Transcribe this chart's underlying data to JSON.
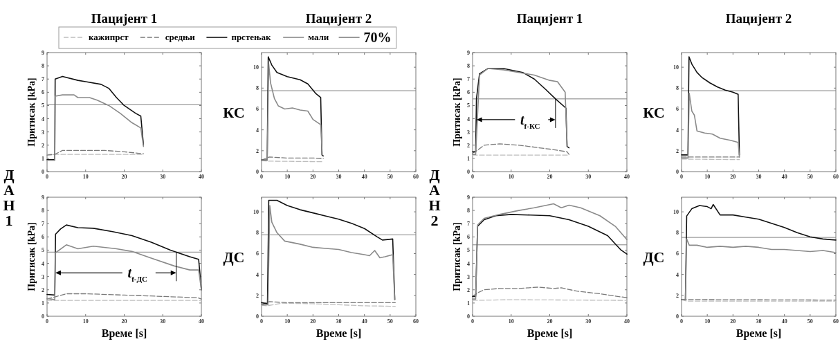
{
  "chart_data": [
    {
      "type": "line",
      "title": "Пацијент 1",
      "ylabel": "Притисак [kPa]",
      "xlim": [
        0,
        40
      ],
      "xticks": [
        0,
        10,
        20,
        30,
        40
      ],
      "ylim": [
        0,
        9
      ],
      "yticks": [
        0,
        1,
        2,
        3,
        4,
        5,
        6,
        7,
        8,
        9
      ],
      "legend": "top",
      "annotations": [
        "70%"
      ],
      "ref_lines": [
        {
          "axis": "y",
          "value": 5.05,
          "color": "#808080"
        }
      ],
      "series": [
        {
          "name": "кажипрст",
          "color": "#bdbdbd",
          "line_style": "dashed",
          "x": [
            0,
            2,
            10,
            20,
            25
          ],
          "values": [
            1.3,
            1.3,
            1.3,
            1.3,
            1.3
          ]
        },
        {
          "name": "средњи",
          "color": "#7a7a7a",
          "line_style": "dashed",
          "x": [
            0,
            2,
            4,
            15,
            20,
            25
          ],
          "values": [
            1.25,
            1.3,
            1.6,
            1.6,
            1.5,
            1.35
          ]
        },
        {
          "name": "прстењак",
          "color": "#111111",
          "line_style": "solid",
          "x": [
            0,
            2,
            2.1,
            4,
            8,
            10,
            14,
            16,
            18,
            20,
            23,
            24.3,
            25
          ],
          "values": [
            0.9,
            0.9,
            7,
            7.2,
            6.9,
            6.8,
            6.6,
            6.3,
            5.6,
            5,
            4.4,
            4.2,
            2
          ]
        },
        {
          "name": "мали",
          "color": "#8a8a8a",
          "line_style": "solid",
          "x": [
            0,
            2,
            2.1,
            4,
            7,
            8,
            11,
            13,
            16,
            19,
            22,
            24.3,
            25
          ],
          "values": [
            0.85,
            0.85,
            5.7,
            5.8,
            5.8,
            5.6,
            5.6,
            5.4,
            5,
            4.4,
            3.7,
            3.3,
            1.9
          ]
        }
      ]
    },
    {
      "type": "line",
      "title": "Пацијент 2",
      "xlim": [
        0,
        60
      ],
      "xticks": [
        0,
        10,
        20,
        30,
        40,
        50,
        60
      ],
      "ylim": [
        0,
        11.4
      ],
      "yticks": [
        0,
        2,
        4,
        6,
        8,
        10
      ],
      "annotations": [
        "КС"
      ],
      "ref_lines": [
        {
          "axis": "y",
          "value": 7.75,
          "color": "#808080"
        }
      ],
      "series": [
        {
          "color": "#bdbdbd",
          "line_style": "dashed",
          "x": [
            0,
            3,
            24
          ],
          "values": [
            1.05,
            1,
            0.95
          ]
        },
        {
          "color": "#7a7a7a",
          "line_style": "dashed",
          "x": [
            0,
            3,
            10,
            20,
            24
          ],
          "values": [
            1.1,
            1.4,
            1.3,
            1.3,
            1.25
          ]
        },
        {
          "color": "#111111",
          "line_style": "solid",
          "x": [
            0,
            2.2,
            2.6,
            4,
            6,
            10,
            15,
            18,
            21,
            23,
            23.5,
            24
          ],
          "values": [
            1.1,
            1.1,
            11,
            10.2,
            9.5,
            9.1,
            8.8,
            8.4,
            7.5,
            7.1,
            1.6,
            1.5
          ]
        },
        {
          "color": "#8a8a8a",
          "line_style": "solid",
          "x": [
            0,
            2.2,
            2.8,
            3.5,
            5,
            6.5,
            9,
            12,
            15,
            18,
            20,
            23,
            23.6
          ],
          "values": [
            1.1,
            1.1,
            10.3,
            8.5,
            7,
            6.3,
            6,
            6.1,
            5.9,
            5.8,
            5,
            4.5,
            1.6
          ]
        }
      ]
    },
    {
      "type": "line",
      "title": "Пацијент 1",
      "ylabel": "Притисак [kPa]",
      "xlim": [
        0,
        40
      ],
      "xticks": [
        0,
        10,
        20,
        30,
        40
      ],
      "ylim": [
        0,
        9
      ],
      "yticks": [
        0,
        1,
        2,
        3,
        4,
        5,
        6,
        7,
        8,
        9
      ],
      "annotations": [
        {
          "text": "t$_{f-КС}$",
          "x": 21.5,
          "y": 5.5
        }
      ],
      "ref_lines": [
        {
          "axis": "y",
          "value": 5.5,
          "color": "#808080"
        }
      ],
      "series": [
        {
          "color": "#bdbdbd",
          "line_style": "dashed",
          "x": [
            0,
            25
          ],
          "values": [
            1.25,
            1.25
          ]
        },
        {
          "color": "#7a7a7a",
          "line_style": "dashed",
          "x": [
            0,
            1.2,
            3,
            7,
            12,
            20,
            24.5,
            25
          ],
          "values": [
            1.4,
            1.6,
            2,
            2.1,
            2,
            1.7,
            1.5,
            1.3
          ]
        },
        {
          "color": "#111111",
          "line_style": "solid",
          "x": [
            0,
            0.8,
            1,
            1.8,
            4,
            8,
            13,
            16,
            19,
            21.5,
            24.2,
            24.5,
            25
          ],
          "values": [
            1.5,
            1.5,
            5.5,
            7.4,
            7.8,
            7.8,
            7.5,
            7,
            6.2,
            5.5,
            4.8,
            1.9,
            1.8
          ]
        },
        {
          "color": "#8a8a8a",
          "line_style": "solid",
          "x": [
            0,
            0.8,
            1.8,
            4,
            8,
            12,
            16,
            20,
            22,
            24,
            24.5
          ],
          "values": [
            1.3,
            1.3,
            7.3,
            7.8,
            7.7,
            7.5,
            7.3,
            6.9,
            6.8,
            6,
            1.9
          ]
        }
      ]
    },
    {
      "type": "line",
      "title": "Пацијент 2",
      "xlim": [
        0,
        60
      ],
      "xticks": [
        0,
        10,
        20,
        30,
        40,
        50,
        60
      ],
      "ylim": [
        0,
        11.4
      ],
      "yticks": [
        0,
        2,
        4,
        6,
        8,
        10
      ],
      "annotations": [
        "КС"
      ],
      "ref_lines": [
        {
          "axis": "y",
          "value": 7.75,
          "color": "#808080"
        }
      ],
      "series": [
        {
          "color": "#bdbdbd",
          "line_style": "dashed",
          "x": [
            0,
            22.5
          ],
          "values": [
            1.2,
            1.15
          ]
        },
        {
          "color": "#7a7a7a",
          "line_style": "dashed",
          "x": [
            0,
            22.5
          ],
          "values": [
            1.4,
            1.4
          ]
        },
        {
          "color": "#111111",
          "line_style": "solid",
          "x": [
            0,
            2.5,
            2.9,
            4,
            6,
            8,
            11,
            14,
            17,
            20,
            22,
            22.5
          ],
          "values": [
            1.6,
            1.6,
            11,
            10.3,
            9.5,
            9,
            8.5,
            8.1,
            7.8,
            7.6,
            7.4,
            1.6
          ]
        },
        {
          "color": "#8a8a8a",
          "line_style": "solid",
          "x": [
            0,
            2.5,
            3,
            4,
            5,
            6,
            9,
            12,
            15,
            19,
            22,
            22.5
          ],
          "values": [
            1.3,
            1.3,
            7.5,
            5.8,
            5.4,
            3.9,
            3.7,
            3.6,
            3.2,
            3,
            2.8,
            1.4
          ]
        }
      ]
    },
    {
      "type": "line",
      "xlabel": "Време [s]",
      "ylabel": "Притисак [kPa]",
      "xlim": [
        0,
        40
      ],
      "xticks": [
        0,
        10,
        20,
        30,
        40
      ],
      "ylim": [
        0,
        9
      ],
      "yticks": [
        0,
        1,
        2,
        3,
        4,
        5,
        6,
        7,
        8,
        9
      ],
      "annotations": [
        "ДАН 1",
        {
          "text": "t$_{f-ДС}$",
          "x": 33.5,
          "y": 4.85
        }
      ],
      "ref_lines": [
        {
          "axis": "y",
          "value": 4.85,
          "color": "#808080"
        }
      ],
      "series": [
        {
          "color": "#bdbdbd",
          "line_style": "dashed",
          "x": [
            0,
            40
          ],
          "values": [
            1.2,
            1.2
          ]
        },
        {
          "color": "#7a7a7a",
          "line_style": "dashed",
          "x": [
            0,
            2.5,
            5,
            10,
            20,
            30,
            39,
            40
          ],
          "values": [
            1.3,
            1.5,
            1.7,
            1.7,
            1.6,
            1.5,
            1.4,
            1.3
          ]
        },
        {
          "color": "#111111",
          "line_style": "solid",
          "x": [
            0,
            2,
            2.2,
            3.5,
            5,
            8,
            12,
            17,
            22,
            27,
            32,
            37,
            39.3,
            40
          ],
          "values": [
            1.65,
            1.6,
            6.2,
            6.6,
            6.9,
            6.7,
            6.65,
            6.4,
            6.1,
            5.6,
            5,
            4.5,
            4.3,
            2
          ]
        },
        {
          "color": "#8a8a8a",
          "line_style": "solid",
          "x": [
            0,
            2,
            2.2,
            5,
            8,
            12,
            18,
            22,
            27,
            33,
            37,
            39.3,
            40
          ],
          "values": [
            1.35,
            1.25,
            4.8,
            5.4,
            5.1,
            5.3,
            5.1,
            4.9,
            4.4,
            3.8,
            3.5,
            3.5,
            2
          ]
        }
      ]
    },
    {
      "type": "line",
      "xlabel": "Време [s]",
      "xlim": [
        0,
        60
      ],
      "xticks": [
        0,
        10,
        20,
        30,
        40,
        50,
        60
      ],
      "ylim": [
        0,
        11.4
      ],
      "yticks": [
        0,
        2,
        4,
        6,
        8,
        10
      ],
      "annotations": [
        "ДС"
      ],
      "ref_lines": [
        {
          "axis": "y",
          "value": 7.8,
          "color": "#808080"
        }
      ],
      "series": [
        {
          "color": "#bdbdbd",
          "line_style": "dashed",
          "x": [
            0,
            2,
            8,
            20,
            30,
            40,
            52
          ],
          "values": [
            1.05,
            1,
            1.25,
            1.2,
            1.1,
            1,
            0.95
          ]
        },
        {
          "color": "#7a7a7a",
          "line_style": "dashed",
          "x": [
            0,
            3,
            10,
            52
          ],
          "values": [
            1.1,
            1.4,
            1.3,
            1.3
          ]
        },
        {
          "color": "#111111",
          "line_style": "solid",
          "x": [
            0,
            2.3,
            2.8,
            6,
            10,
            15,
            20,
            25,
            30,
            35,
            40,
            45,
            47,
            51,
            51.8
          ],
          "values": [
            1.3,
            1.2,
            11.1,
            11.1,
            10.6,
            10.2,
            9.9,
            9.6,
            9.3,
            8.9,
            8.4,
            7.6,
            7.3,
            7.4,
            1.6
          ]
        },
        {
          "color": "#8a8a8a",
          "line_style": "solid",
          "x": [
            0,
            2.5,
            3.2,
            4,
            6,
            9,
            15,
            20,
            25,
            30,
            35,
            40,
            42,
            44,
            46,
            48,
            51,
            51.8
          ],
          "values": [
            1.1,
            1.1,
            10.6,
            9,
            8,
            7.2,
            6.9,
            6.6,
            6.5,
            6.4,
            6.1,
            5.9,
            5.8,
            6.3,
            5.6,
            5.7,
            5.9,
            1.6
          ]
        }
      ]
    },
    {
      "type": "line",
      "xlabel": "Време [s]",
      "ylabel": "Притисак [kPa]",
      "xlim": [
        0,
        40
      ],
      "xticks": [
        0,
        10,
        20,
        30,
        40
      ],
      "ylim": [
        0,
        9
      ],
      "yticks": [
        0,
        1,
        2,
        3,
        4,
        5,
        6,
        7,
        8,
        9
      ],
      "annotations": [
        "ДАН 2"
      ],
      "ref_lines": [
        {
          "axis": "y",
          "value": 5.4,
          "color": "#808080"
        }
      ],
      "series": [
        {
          "color": "#bdbdbd",
          "line_style": "dashed",
          "x": [
            0,
            10,
            40
          ],
          "values": [
            1.2,
            1.25,
            1.2
          ]
        },
        {
          "color": "#7a7a7a",
          "line_style": "dashed",
          "x": [
            0,
            1.5,
            3,
            7,
            12,
            17,
            21,
            23,
            27,
            33,
            40
          ],
          "values": [
            1.5,
            1.8,
            2,
            2.1,
            2.1,
            2.2,
            2.1,
            2.15,
            1.9,
            1.7,
            1.4
          ]
        },
        {
          "color": "#111111",
          "line_style": "solid",
          "x": [
            0,
            0.8,
            1.3,
            3,
            6,
            10,
            15,
            20,
            25,
            30,
            35,
            38.5,
            40
          ],
          "values": [
            1.5,
            1.5,
            6.8,
            7.3,
            7.6,
            7.7,
            7.65,
            7.6,
            7.3,
            6.8,
            6.1,
            5,
            4.7
          ]
        },
        {
          "color": "#8a8a8a",
          "line_style": "solid",
          "x": [
            0,
            0.8,
            1.3,
            3,
            7,
            12,
            16,
            21,
            23,
            25,
            28,
            33,
            37,
            40
          ],
          "values": [
            1.3,
            1.3,
            6.9,
            7.4,
            7.7,
            8,
            8.2,
            8.5,
            8.2,
            8.4,
            8.2,
            7.6,
            6.8,
            5.8
          ]
        }
      ]
    },
    {
      "type": "line",
      "xlabel": "Време [s]",
      "xlim": [
        0,
        60
      ],
      "xticks": [
        0,
        10,
        20,
        30,
        40,
        50,
        60
      ],
      "ylim": [
        0,
        11.4
      ],
      "yticks": [
        0,
        2,
        4,
        6,
        8,
        10
      ],
      "annotations": [
        "ДС"
      ],
      "ref_lines": [
        {
          "axis": "y",
          "value": 7.55,
          "color": "#808080"
        }
      ],
      "series": [
        {
          "color": "#bdbdbd",
          "line_style": "dashed",
          "x": [
            0,
            2,
            60
          ],
          "values": [
            1.6,
            1.45,
            1.45
          ]
        },
        {
          "color": "#7a7a7a",
          "line_style": "dashed",
          "x": [
            0,
            60
          ],
          "values": [
            1.6,
            1.55
          ]
        },
        {
          "color": "#111111",
          "line_style": "solid",
          "x": [
            0,
            1.5,
            2,
            4,
            7,
            10,
            11.5,
            12.3,
            15,
            20,
            25,
            30,
            35,
            40,
            45,
            50,
            55,
            60
          ],
          "values": [
            1.6,
            1.6,
            9.6,
            10.3,
            10.6,
            10.5,
            10.3,
            10.7,
            9.7,
            9.7,
            9.5,
            9.3,
            8.9,
            8.5,
            8,
            7.6,
            7.4,
            7.3
          ]
        },
        {
          "color": "#8a8a8a",
          "line_style": "solid",
          "x": [
            0,
            1.5,
            2,
            3,
            6,
            10,
            15,
            20,
            25,
            30,
            35,
            40,
            45,
            50,
            55,
            60
          ],
          "values": [
            1.6,
            1.6,
            7.4,
            6.8,
            6.8,
            6.6,
            6.7,
            6.6,
            6.7,
            6.6,
            6.4,
            6.4,
            6.3,
            6.2,
            6.3,
            6.1
          ]
        }
      ]
    }
  ]
}
